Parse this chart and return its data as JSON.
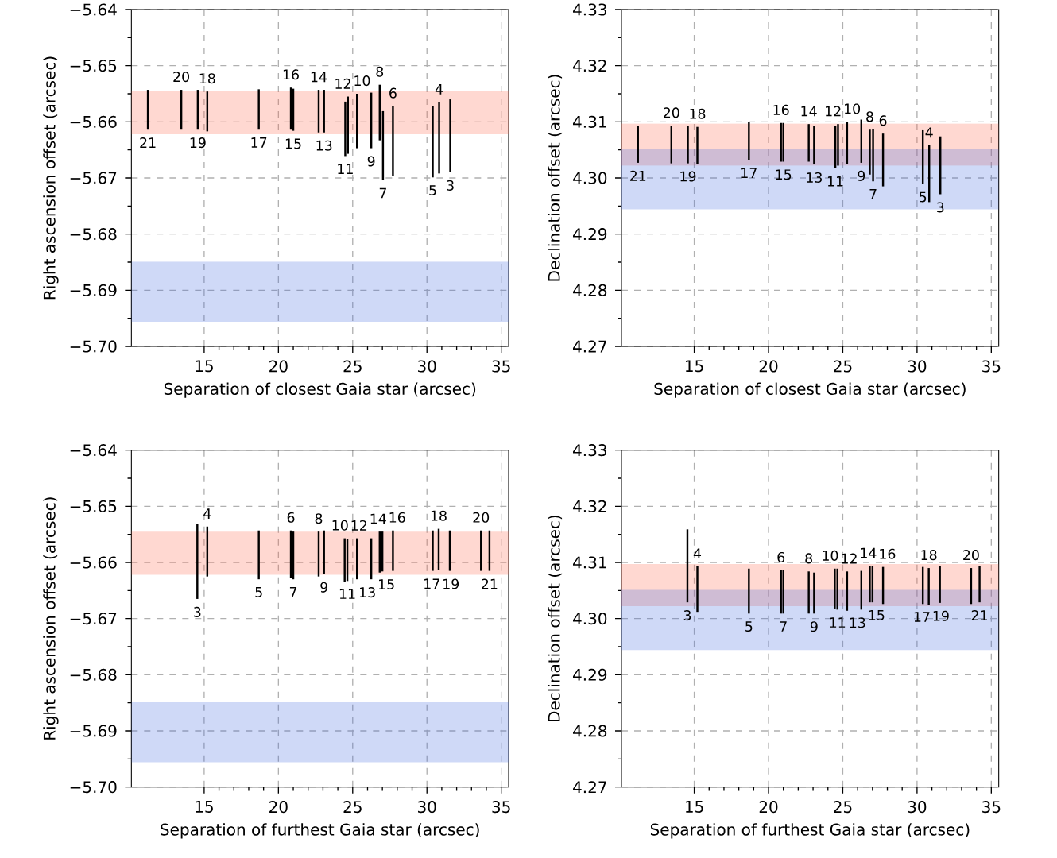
{
  "chart_data": [
    {
      "type": "bar",
      "xlabel": "Separation of closest Gaia star (arcsec)",
      "ylabel": "Right ascension offset (arcsec)",
      "color": "#000000",
      "grid": true,
      "xlim": [
        10.1,
        35.5
      ],
      "ylim": [
        -5.7,
        -5.64
      ],
      "xticks": [
        15,
        20,
        25,
        30,
        35
      ],
      "yticks": [
        {
          "value": -5.7,
          "label": "−5.70"
        },
        {
          "value": -5.69,
          "label": "−5.69"
        },
        {
          "value": -5.68,
          "label": "−5.68"
        },
        {
          "value": -5.67,
          "label": "−5.67"
        },
        {
          "value": -5.66,
          "label": "−5.66"
        },
        {
          "value": -5.65,
          "label": "−5.65"
        },
        {
          "value": -5.64,
          "label": "−5.64"
        }
      ],
      "x": [
        11.21,
        13.46,
        14.57,
        15.21,
        18.68,
        20.84,
        21.0,
        22.71,
        23.07,
        24.5,
        24.68,
        25.29,
        26.25,
        26.82,
        27.04,
        27.71,
        30.39,
        30.82,
        31.57
      ],
      "base": [
        -5.6614,
        -5.6614,
        -5.6614,
        -5.6617,
        -5.6614,
        -5.6614,
        -5.6616,
        -5.6619,
        -5.6619,
        -5.6661,
        -5.6657,
        -5.6647,
        -5.6647,
        -5.6633,
        -5.6704,
        -5.6697,
        -5.6699,
        -5.6692,
        -5.669
      ],
      "values": [
        0.0071,
        0.0071,
        0.0071,
        0.0071,
        0.0072,
        0.0075,
        0.0075,
        0.0076,
        0.0076,
        0.0097,
        0.0102,
        0.0097,
        0.0099,
        0.0099,
        0.0123,
        0.0125,
        0.0127,
        0.0127,
        0.013
      ],
      "bands": [
        {
          "axis": "y",
          "from": -5.6622,
          "to": -5.6545,
          "color": "#ff6347"
        },
        {
          "axis": "y",
          "from": -5.6956,
          "to": -5.6849,
          "color": "#4169e1"
        }
      ],
      "annotations": [
        {
          "text": "21",
          "x": 11.21,
          "y": -5.6614
        },
        {
          "text": "20",
          "x": 13.46,
          "y": -5.6543
        },
        {
          "text": "19",
          "x": 14.57,
          "y": -5.6614
        },
        {
          "text": "18",
          "x": 15.21,
          "y": -5.6546
        },
        {
          "text": "17",
          "x": 18.68,
          "y": -5.6614
        },
        {
          "text": "16",
          "x": 20.84,
          "y": -5.6539
        },
        {
          "text": "15",
          "x": 21.0,
          "y": -5.6616
        },
        {
          "text": "14",
          "x": 22.71,
          "y": -5.6543
        },
        {
          "text": "13",
          "x": 23.07,
          "y": -5.6619
        },
        {
          "text": "12",
          "x": 24.68,
          "y": -5.6555
        },
        {
          "text": "11",
          "x": 24.5,
          "y": -5.6661
        },
        {
          "text": "10",
          "x": 25.29,
          "y": -5.655
        },
        {
          "text": "9",
          "x": 26.25,
          "y": -5.6647
        },
        {
          "text": "8",
          "x": 26.82,
          "y": -5.6534
        },
        {
          "text": "7",
          "x": 27.04,
          "y": -5.6704
        },
        {
          "text": "6",
          "x": 27.71,
          "y": -5.6572
        },
        {
          "text": "5",
          "x": 30.39,
          "y": -5.6699
        },
        {
          "text": "4",
          "x": 30.82,
          "y": -5.6565
        },
        {
          "text": "3",
          "x": 31.57,
          "y": -5.669
        }
      ]
    },
    {
      "type": "bar",
      "xlabel": "Separation of closest Gaia star (arcsec)",
      "ylabel": "Declination offset (arcsec)",
      "color": "#000000",
      "grid": true,
      "xlim": [
        10.1,
        35.5
      ],
      "ylim": [
        4.27,
        4.33
      ],
      "xticks": [
        15,
        20,
        25,
        30,
        35
      ],
      "yticks": [
        4.27,
        4.28,
        4.29,
        {
          "value": 4.3,
          "label": "4.30"
        },
        4.31,
        4.32,
        4.33
      ],
      "x": [
        11.21,
        13.46,
        14.57,
        15.21,
        18.68,
        20.84,
        21.0,
        22.71,
        23.07,
        24.5,
        24.68,
        25.29,
        26.25,
        26.82,
        27.04,
        27.71,
        30.39,
        30.82,
        31.57
      ],
      "base": [
        4.3027,
        4.3026,
        4.3026,
        4.3025,
        4.3032,
        4.3029,
        4.3029,
        4.3029,
        4.3024,
        4.3017,
        4.3022,
        4.3025,
        4.3027,
        4.3006,
        4.2994,
        4.2985,
        4.2989,
        4.2957,
        4.2971
      ],
      "values": [
        0.0066,
        0.0067,
        0.0067,
        0.0066,
        0.0068,
        0.0069,
        0.0069,
        0.0067,
        0.0069,
        0.0076,
        0.0074,
        0.0075,
        0.0077,
        0.008,
        0.0093,
        0.0094,
        0.0096,
        0.0101,
        0.0103
      ],
      "bands": [
        {
          "axis": "y",
          "from": 4.3022,
          "to": 4.3097,
          "color": "#ff6347"
        },
        {
          "axis": "y",
          "from": 4.2944,
          "to": 4.3051,
          "color": "#4169e1"
        }
      ],
      "annotations": [
        {
          "text": "21",
          "x": 11.21,
          "y": 4.3027
        },
        {
          "text": "20",
          "x": 13.46,
          "y": 4.3093
        },
        {
          "text": "19",
          "x": 14.57,
          "y": 4.3026
        },
        {
          "text": "18",
          "x": 15.21,
          "y": 4.3091
        },
        {
          "text": "17",
          "x": 18.68,
          "y": 4.3032
        },
        {
          "text": "16",
          "x": 20.84,
          "y": 4.3098
        },
        {
          "text": "15",
          "x": 21.0,
          "y": 4.3029
        },
        {
          "text": "14",
          "x": 22.71,
          "y": 4.3096
        },
        {
          "text": "13",
          "x": 23.07,
          "y": 4.3024
        },
        {
          "text": "12",
          "x": 24.68,
          "y": 4.3096
        },
        {
          "text": "11",
          "x": 24.5,
          "y": 4.3017
        },
        {
          "text": "10",
          "x": 25.29,
          "y": 4.31
        },
        {
          "text": "9",
          "x": 26.25,
          "y": 4.3027
        },
        {
          "text": "8",
          "x": 26.82,
          "y": 4.3086
        },
        {
          "text": "7",
          "x": 27.04,
          "y": 4.2994
        },
        {
          "text": "6",
          "x": 27.71,
          "y": 4.3079
        },
        {
          "text": "5",
          "x": 30.39,
          "y": 4.2989
        },
        {
          "text": "4",
          "x": 30.82,
          "y": 4.3058
        },
        {
          "text": "3",
          "x": 31.57,
          "y": 4.2971
        }
      ]
    },
    {
      "type": "bar",
      "xlabel": "Separation of furthest Gaia star (arcsec)",
      "ylabel": "Right ascension offset (arcsec)",
      "color": "#000000",
      "grid": true,
      "xlim": [
        10.1,
        35.5
      ],
      "ylim": [
        -5.7,
        -5.64
      ],
      "xticks": [
        15,
        20,
        25,
        30,
        35
      ],
      "yticks": [
        {
          "value": -5.7,
          "label": "−5.70"
        },
        {
          "value": -5.69,
          "label": "−5.69"
        },
        {
          "value": -5.68,
          "label": "−5.68"
        },
        {
          "value": -5.67,
          "label": "−5.67"
        },
        {
          "value": -5.66,
          "label": "−5.66"
        },
        {
          "value": -5.65,
          "label": "−5.65"
        },
        {
          "value": -5.64,
          "label": "−5.64"
        }
      ],
      "x": [
        14.54,
        15.21,
        18.68,
        20.84,
        21.0,
        22.71,
        23.07,
        24.46,
        24.64,
        25.29,
        26.25,
        26.82,
        27.0,
        27.71,
        30.39,
        30.79,
        31.54,
        33.64,
        34.21
      ],
      "base": [
        -5.6665,
        -5.6625,
        -5.663,
        -5.6628,
        -5.663,
        -5.6625,
        -5.6621,
        -5.6634,
        -5.6633,
        -5.663,
        -5.663,
        -5.6618,
        -5.6616,
        -5.6615,
        -5.6615,
        -5.6613,
        -5.6615,
        -5.6615,
        -5.6615
      ],
      "values": [
        0.0134,
        0.0089,
        0.0087,
        0.0085,
        0.0085,
        0.008,
        0.0078,
        0.0077,
        0.0074,
        0.0073,
        0.0073,
        0.0073,
        0.0071,
        0.0072,
        0.0072,
        0.0073,
        0.0072,
        0.0072,
        0.0072
      ],
      "bands": [
        {
          "axis": "y",
          "from": -5.6622,
          "to": -5.6545,
          "color": "#ff6347"
        },
        {
          "axis": "y",
          "from": -5.6956,
          "to": -5.6849,
          "color": "#4169e1"
        }
      ],
      "annotations": [
        {
          "text": "3",
          "x": 14.54,
          "y": -5.6665
        },
        {
          "text": "4",
          "x": 15.21,
          "y": -5.6536
        },
        {
          "text": "5",
          "x": 18.68,
          "y": -5.663
        },
        {
          "text": "6",
          "x": 20.84,
          "y": -5.6543
        },
        {
          "text": "7",
          "x": 21.0,
          "y": -5.663
        },
        {
          "text": "8",
          "x": 22.71,
          "y": -5.6545
        },
        {
          "text": "9",
          "x": 23.07,
          "y": -5.6621
        },
        {
          "text": "10",
          "x": 24.46,
          "y": -5.6557
        },
        {
          "text": "11",
          "x": 24.64,
          "y": -5.6633
        },
        {
          "text": "12",
          "x": 25.29,
          "y": -5.6557
        },
        {
          "text": "13",
          "x": 26.25,
          "y": -5.663
        },
        {
          "text": "14",
          "x": 26.82,
          "y": -5.6545
        },
        {
          "text": "15",
          "x": 27.0,
          "y": -5.6616
        },
        {
          "text": "16",
          "x": 27.71,
          "y": -5.6543
        },
        {
          "text": "17",
          "x": 30.39,
          "y": -5.6615
        },
        {
          "text": "18",
          "x": 30.79,
          "y": -5.654
        },
        {
          "text": "19",
          "x": 31.54,
          "y": -5.6615
        },
        {
          "text": "20",
          "x": 33.64,
          "y": -5.6543
        },
        {
          "text": "21",
          "x": 34.21,
          "y": -5.6615
        }
      ]
    },
    {
      "type": "bar",
      "xlabel": "Separation of furthest Gaia star (arcsec)",
      "ylabel": "Declination offset (arcsec)",
      "color": "#000000",
      "grid": true,
      "xlim": [
        10.1,
        35.5
      ],
      "ylim": [
        4.27,
        4.33
      ],
      "xticks": [
        15,
        20,
        25,
        30,
        35
      ],
      "yticks": [
        4.27,
        4.28,
        4.29,
        {
          "value": 4.3,
          "label": "4.30"
        },
        4.31,
        4.32,
        4.33
      ],
      "x": [
        14.54,
        15.21,
        18.68,
        20.84,
        21.0,
        22.71,
        23.07,
        24.46,
        24.64,
        25.29,
        26.25,
        26.82,
        27.0,
        27.71,
        30.39,
        30.79,
        31.54,
        33.64,
        34.21
      ],
      "base": [
        4.3029,
        4.3012,
        4.3009,
        4.3009,
        4.3009,
        4.3009,
        4.3009,
        4.3018,
        4.3016,
        4.3014,
        4.3016,
        4.3029,
        4.3029,
        4.3026,
        4.3026,
        4.3024,
        4.3028,
        4.3026,
        4.3029
      ],
      "values": [
        0.013,
        0.0081,
        0.008,
        0.0077,
        0.0077,
        0.0075,
        0.0073,
        0.0071,
        0.0073,
        0.007,
        0.0069,
        0.0065,
        0.0065,
        0.0066,
        0.0066,
        0.0066,
        0.0066,
        0.0064,
        0.0065
      ],
      "bands": [
        {
          "axis": "y",
          "from": 4.3022,
          "to": 4.3097,
          "color": "#ff6347"
        },
        {
          "axis": "y",
          "from": 4.2944,
          "to": 4.3051,
          "color": "#4169e1"
        }
      ],
      "annotations": [
        {
          "text": "3",
          "x": 14.54,
          "y": 4.3029
        },
        {
          "text": "4",
          "x": 15.21,
          "y": 4.3093
        },
        {
          "text": "5",
          "x": 18.68,
          "y": 4.3009
        },
        {
          "text": "6",
          "x": 20.84,
          "y": 4.3086
        },
        {
          "text": "7",
          "x": 21.0,
          "y": 4.3009
        },
        {
          "text": "8",
          "x": 22.71,
          "y": 4.3084
        },
        {
          "text": "9",
          "x": 23.07,
          "y": 4.3009
        },
        {
          "text": "10",
          "x": 24.46,
          "y": 4.3089
        },
        {
          "text": "11",
          "x": 24.64,
          "y": 4.3016
        },
        {
          "text": "12",
          "x": 25.29,
          "y": 4.3084
        },
        {
          "text": "13",
          "x": 26.25,
          "y": 4.3016
        },
        {
          "text": "14",
          "x": 26.82,
          "y": 4.3094
        },
        {
          "text": "15",
          "x": 27.0,
          "y": 4.3029
        },
        {
          "text": "16",
          "x": 27.71,
          "y": 4.3092
        },
        {
          "text": "17",
          "x": 30.39,
          "y": 4.3026
        },
        {
          "text": "18",
          "x": 30.79,
          "y": 4.309
        },
        {
          "text": "19",
          "x": 31.54,
          "y": 4.3028
        },
        {
          "text": "20",
          "x": 33.64,
          "y": 4.309
        },
        {
          "text": "21",
          "x": 34.21,
          "y": 4.3029
        }
      ]
    }
  ]
}
